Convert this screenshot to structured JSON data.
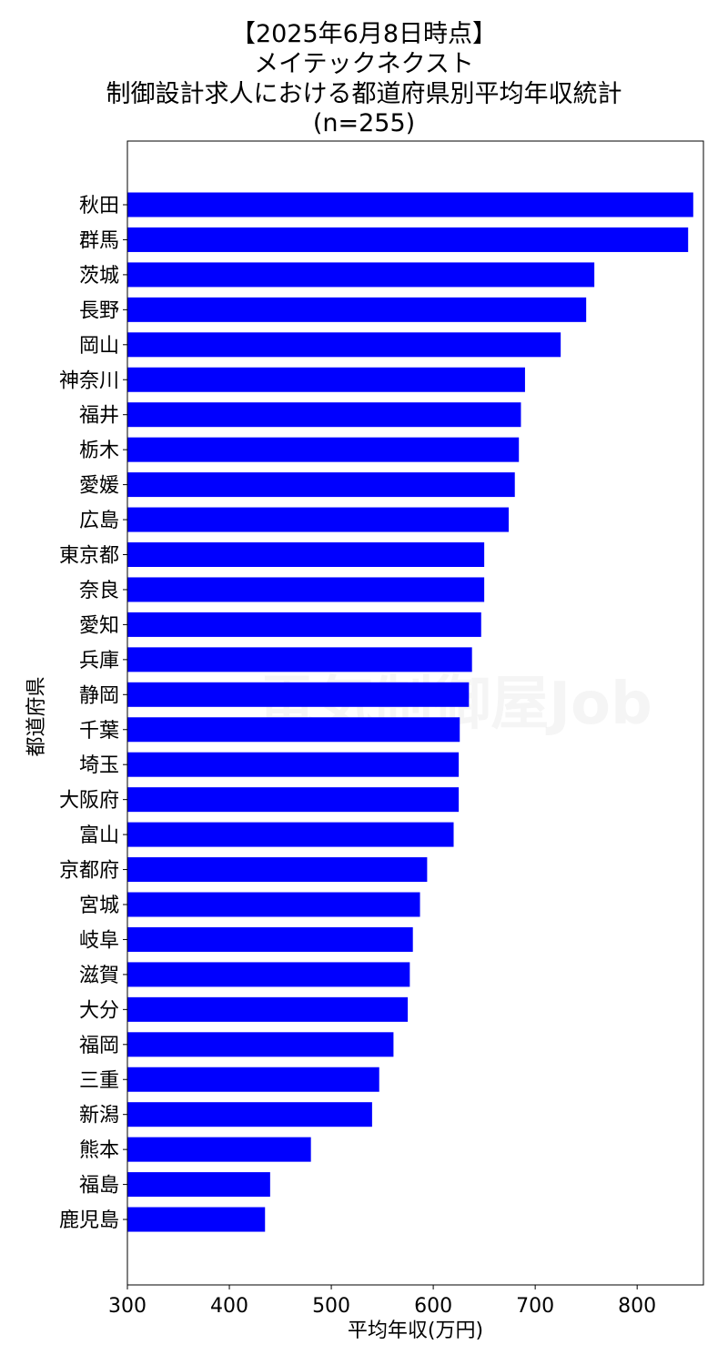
{
  "chart_data": {
    "type": "bar",
    "orientation": "horizontal",
    "title_lines": [
      "【2025年6月8日時点】",
      "メイテックネクスト",
      "制御設計求人における都道府県別平均年収統計",
      "(n=255)"
    ],
    "xlabel": "平均年収(万円)",
    "ylabel": "都道府県",
    "xlim": [
      300,
      865
    ],
    "xticks": [
      300,
      400,
      500,
      600,
      700,
      800
    ],
    "categories": [
      "秋田",
      "群馬",
      "茨城",
      "長野",
      "岡山",
      "神奈川",
      "福井",
      "栃木",
      "愛媛",
      "広島",
      "東京都",
      "奈良",
      "愛知",
      "兵庫",
      "静岡",
      "千葉",
      "埼玉",
      "大阪府",
      "富山",
      "京都府",
      "宮城",
      "岐阜",
      "滋賀",
      "大分",
      "福岡",
      "三重",
      "新潟",
      "熊本",
      "福島",
      "鹿児島"
    ],
    "values": [
      855,
      850,
      758,
      750,
      725,
      690,
      686,
      684,
      680,
      674,
      650,
      650,
      647,
      638,
      635,
      626,
      625,
      625,
      620,
      594,
      587,
      580,
      577,
      575,
      561,
      547,
      540,
      480,
      440,
      435
    ],
    "bar_color": "#0000ff",
    "grid": false,
    "watermark": "電気制御屋Job"
  }
}
